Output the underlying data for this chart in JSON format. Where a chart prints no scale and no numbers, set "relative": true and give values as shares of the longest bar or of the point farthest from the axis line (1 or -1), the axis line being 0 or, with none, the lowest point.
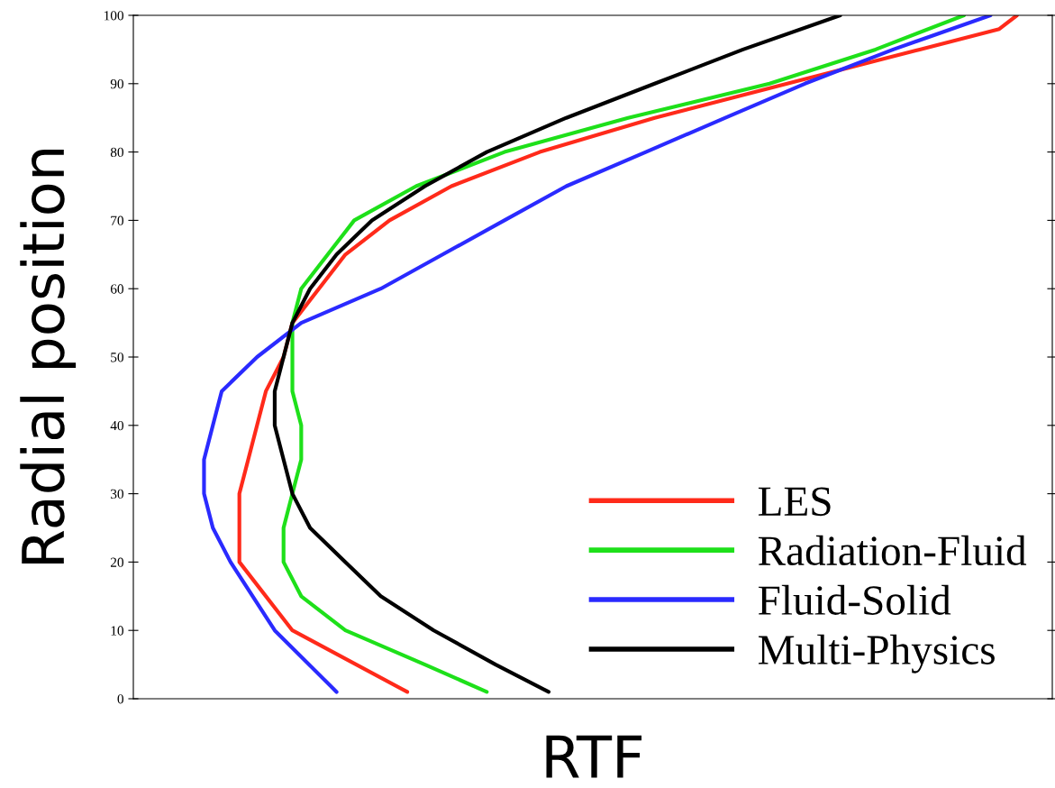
{
  "chart_data": {
    "type": "line",
    "orientation": "horizontal",
    "relative": true,
    "xlabel": "RTF",
    "ylabel": "Radial position",
    "ylim": [
      0,
      100
    ],
    "yticks": [
      0,
      10,
      20,
      30,
      40,
      50,
      60,
      70,
      80,
      90,
      100
    ],
    "tick_labels": "y",
    "grid": false,
    "legend": "bottom right",
    "line_style": "solid",
    "marker": "none",
    "series": [
      {
        "name": "LES",
        "color": "#ff2a1a",
        "x": [
          1,
          10,
          20,
          25,
          30,
          35,
          40,
          45,
          50,
          55,
          60,
          65,
          70,
          75,
          80,
          85,
          90,
          95,
          98,
          100
        ],
        "values": [
          0.31,
          0.18,
          0.12,
          0.12,
          0.12,
          0.13,
          0.14,
          0.15,
          0.17,
          0.18,
          0.21,
          0.24,
          0.29,
          0.36,
          0.46,
          0.59,
          0.74,
          0.89,
          0.98,
          1
        ]
      },
      {
        "name": "Radiation-Fluid",
        "color": "#1ee01a",
        "x": [
          1,
          5,
          10,
          15,
          20,
          25,
          30,
          35,
          40,
          45,
          50,
          55,
          60,
          65,
          70,
          75,
          80,
          85,
          90,
          95,
          100
        ],
        "values": [
          0.4,
          0.33,
          0.24,
          0.19,
          0.17,
          0.17,
          0.18,
          0.19,
          0.19,
          0.18,
          0.18,
          0.18,
          0.19,
          0.22,
          0.25,
          0.32,
          0.42,
          0.56,
          0.72,
          0.84,
          0.94
        ]
      },
      {
        "name": "Fluid-Solid",
        "color": "#2a2aff",
        "x": [
          1,
          10,
          20,
          25,
          30,
          35,
          40,
          45,
          50,
          55,
          60,
          65,
          70,
          75,
          80,
          85,
          90,
          95,
          100
        ],
        "values": [
          0.23,
          0.16,
          0.11,
          0.09,
          0.08,
          0.08,
          0.09,
          0.1,
          0.14,
          0.19,
          0.28,
          0.35,
          0.42,
          0.49,
          0.58,
          0.67,
          0.76,
          0.86,
          0.97
        ]
      },
      {
        "name": "Multi-Physics",
        "color": "#000000",
        "x": [
          1,
          5,
          10,
          15,
          20,
          25,
          30,
          35,
          40,
          45,
          50,
          55,
          60,
          65,
          70,
          75,
          80,
          85,
          90,
          95,
          100
        ],
        "values": [
          0.47,
          0.41,
          0.34,
          0.28,
          0.24,
          0.2,
          0.18,
          0.17,
          0.16,
          0.16,
          0.17,
          0.18,
          0.2,
          0.23,
          0.27,
          0.33,
          0.4,
          0.49,
          0.59,
          0.69,
          0.8
        ]
      }
    ]
  }
}
